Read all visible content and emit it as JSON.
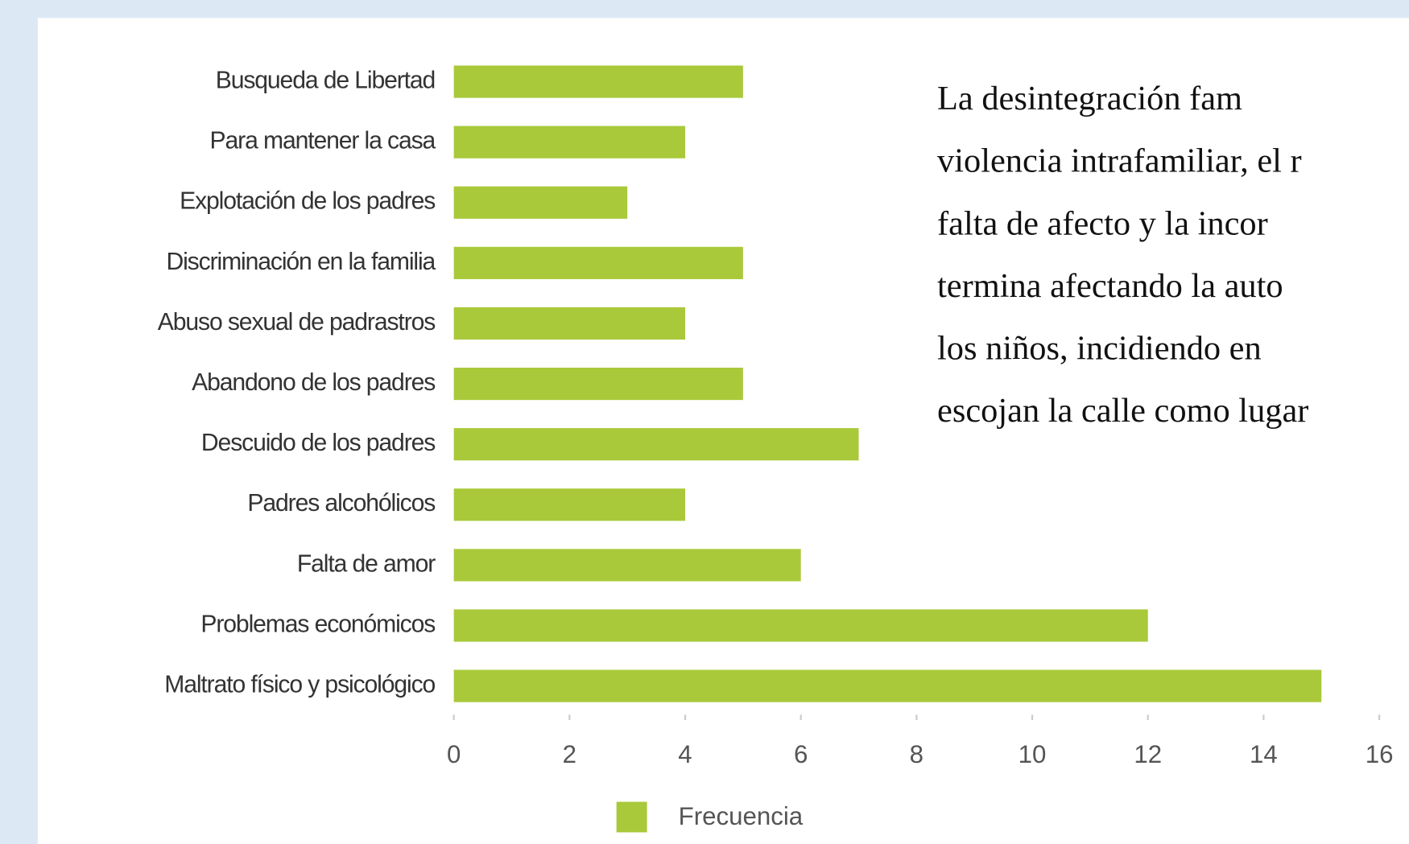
{
  "chart_data": {
    "type": "bar",
    "orientation": "horizontal",
    "categories": [
      "Busqueda de Libertad",
      "Para mantener la casa",
      "Explotación de los padres",
      "Discriminación en la familia",
      "Abuso sexual de padrastros",
      "Abandono de los padres",
      "Descuido de los padres",
      "Padres alcohólicos",
      "Falta de amor",
      "Problemas económicos",
      "Maltrato físico y psicológico"
    ],
    "series": [
      {
        "name": "Frecuencia",
        "color": "#a9c93a",
        "values": [
          5,
          4,
          3,
          5,
          4,
          5,
          7,
          4,
          6,
          12,
          15
        ]
      }
    ],
    "xlim": [
      0,
      16
    ],
    "xticks": [
      0,
      2,
      4,
      6,
      8,
      10,
      12,
      14,
      16
    ],
    "legend": "bottom"
  },
  "paragraph": {
    "lines": [
      "La desintegración fam",
      "violencia intrafamiliar, el r",
      "falta de afecto y la incor",
      "termina afectando la auto",
      "los niños, incidiendo en",
      "escojan la calle como lugar"
    ]
  }
}
